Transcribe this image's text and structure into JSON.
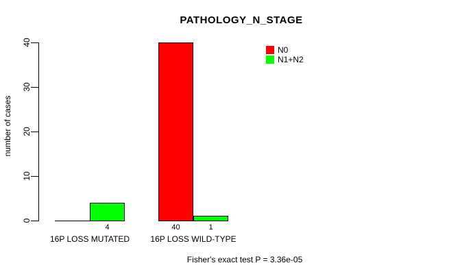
{
  "title": "PATHOLOGY_N_STAGE",
  "ylabel": "number of cases",
  "footer": "Fisher's exact test P = 3.36e-05",
  "legend": [
    {
      "label": "N0",
      "color": "#ff0000"
    },
    {
      "label": "N1+N2",
      "color": "#00ff00"
    }
  ],
  "chart_data": {
    "type": "bar",
    "title": "PATHOLOGY_N_STAGE",
    "ylabel": "number of cases",
    "xlabel": "",
    "categories": [
      "16P LOSS MUTATED",
      "16P LOSS WILD-TYPE"
    ],
    "series": [
      {
        "name": "N0",
        "color": "#ff0000",
        "values": [
          0,
          40
        ]
      },
      {
        "name": "N1+N2",
        "color": "#00ff00",
        "values": [
          4,
          1
        ]
      }
    ],
    "bar_value_labels": [
      [
        "",
        "4"
      ],
      [
        "40",
        "1"
      ]
    ],
    "yticks": [
      0,
      10,
      20,
      30,
      40
    ],
    "ylim": [
      0,
      40
    ],
    "grid": false,
    "legend_position": "top-right",
    "annotation": "Fisher's exact test P = 3.36e-05"
  }
}
